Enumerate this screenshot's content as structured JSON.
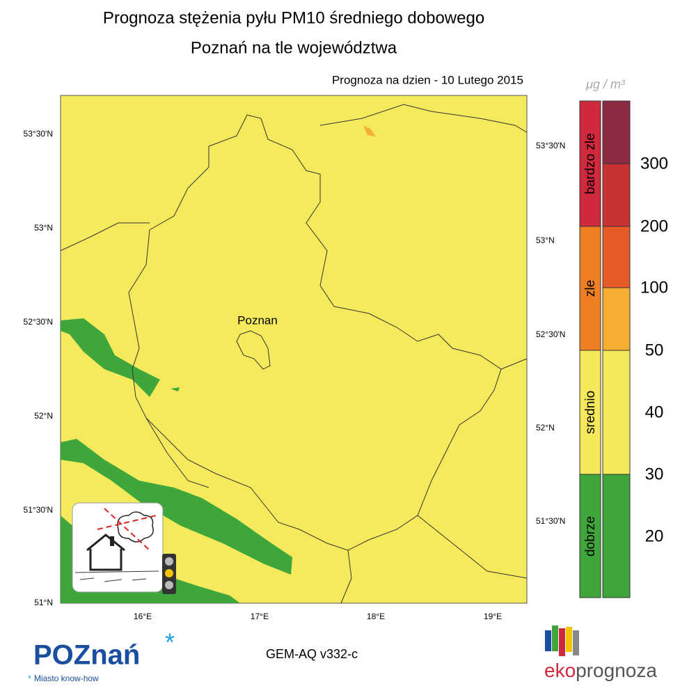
{
  "title": [
    "Prognoza stężenia pyłu PM10 średniego dobowego",
    "Poznań na tle województwa"
  ],
  "date_label": "Prognoza na dzien -  10 Lutego 2015",
  "unit": "μg / m³",
  "map": {
    "city_label": "Poznan",
    "lat_labels_left": [
      "53°30'N",
      "53°N",
      "52°30'N",
      "52°N",
      "51°30'N",
      "51°N"
    ],
    "lat_labels_right": [
      "53°30'N",
      "53°N",
      "52°30'N",
      "52°N",
      "51°30'N"
    ],
    "lon_labels": [
      "16°E",
      "17°E",
      "18°E",
      "19°E"
    ]
  },
  "legend": {
    "categories": [
      "bardzo zle",
      "zle",
      "srednio",
      "dobrze"
    ],
    "levels": [
      300,
      200,
      100,
      50,
      40,
      30,
      20
    ]
  },
  "model": "GEM-AQ v332-c",
  "logos": {
    "poznan": "POZnań",
    "poznan_tagline": "Miasto know-how",
    "eko_prefix": "eko",
    "eko_suffix": "prognoza"
  }
}
